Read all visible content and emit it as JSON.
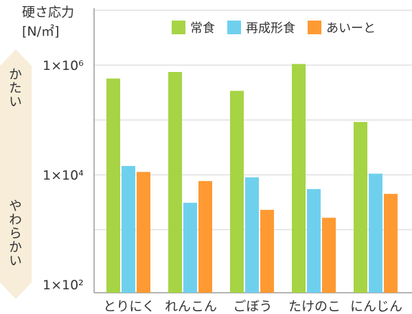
{
  "chart_data": {
    "type": "bar",
    "ylabel_line1": "硬さ応力",
    "ylabel_line2": "[N/㎡]",
    "yscale": "log",
    "ylim": [
      100,
      10000000
    ],
    "yticks": [
      {
        "value": 100,
        "label": "1×10²"
      },
      {
        "value": 10000,
        "label": "1×10⁴"
      },
      {
        "value": 1000000,
        "label": "1×10⁶"
      }
    ],
    "categories": [
      "とりにく",
      "れんこん",
      "ごぼう",
      "たけのこ",
      "にんじん"
    ],
    "series": [
      {
        "name": "常食",
        "color": "#a6d445",
        "values": [
          570000,
          750000,
          340000,
          1050000,
          92000
        ]
      },
      {
        "name": "再成形食",
        "color": "#6fd0ee",
        "values": [
          14500,
          3100,
          9000,
          5500,
          10500
        ]
      },
      {
        "name": "あいーと",
        "color": "#ff9a33",
        "values": [
          11300,
          7700,
          2300,
          1650,
          4500
        ]
      }
    ],
    "legend_position": "top-right",
    "grid": true,
    "hardness_scale": {
      "hard_label": "かたい",
      "soft_label": "やわらかい",
      "color": "#f7edd9"
    }
  }
}
